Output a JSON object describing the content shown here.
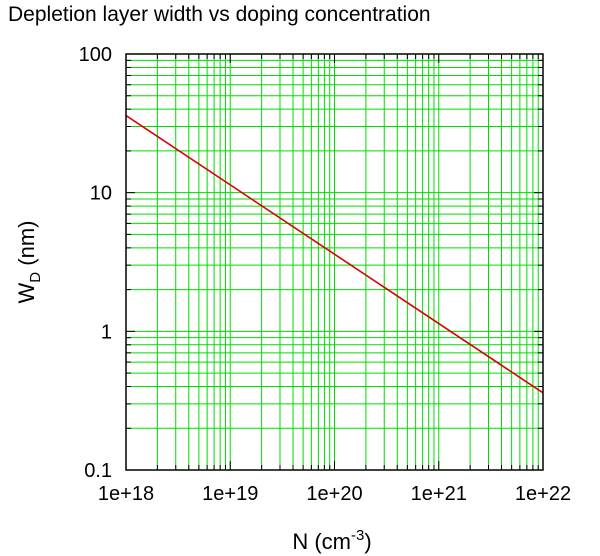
{
  "chart_data": {
    "type": "line",
    "title": "Depletion layer width vs doping concentration",
    "xlabel": {
      "base": "N (cm",
      "sup": "-3",
      "tail": ")"
    },
    "ylabel": {
      "base": "W",
      "sub": "D",
      "tail": " (nm)"
    },
    "x_scale": "log",
    "y_scale": "log",
    "xlim": [
      1e+18,
      1e+22
    ],
    "ylim": [
      0.1,
      100
    ],
    "x_ticks": [
      {
        "value": 1e+18,
        "label": "1e+18"
      },
      {
        "value": 1e+19,
        "label": "1e+19"
      },
      {
        "value": 1e+20,
        "label": "1e+20"
      },
      {
        "value": 1e+21,
        "label": "1e+21"
      },
      {
        "value": 1e+22,
        "label": "1e+22"
      }
    ],
    "y_ticks": [
      {
        "value": 0.1,
        "label": "0.1"
      },
      {
        "value": 1,
        "label": "1"
      },
      {
        "value": 10,
        "label": "10"
      },
      {
        "value": 100,
        "label": "100"
      }
    ],
    "grid": true,
    "grid_minor": true,
    "grid_color": "#00dd00",
    "series": [
      {
        "color": "#dd0000",
        "points": [
          {
            "x": 1e+18,
            "y": 36
          },
          {
            "x": 1e+22,
            "y": 0.36
          }
        ]
      }
    ]
  }
}
